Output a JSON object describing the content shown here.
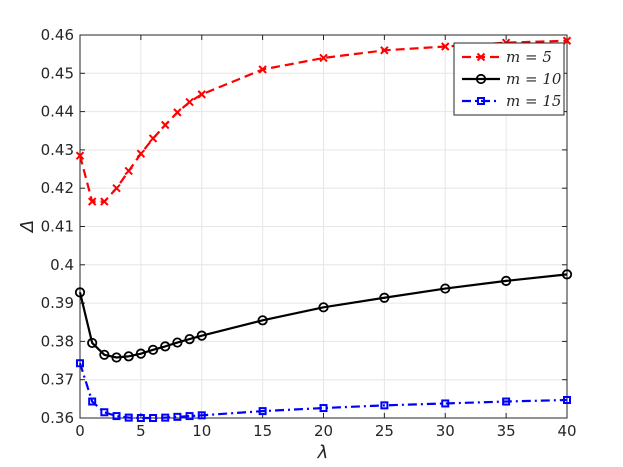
{
  "chart_data": {
    "type": "line",
    "xlabel": "λ",
    "ylabel": "Δ",
    "xlim": [
      0,
      40
    ],
    "ylim": [
      0.36,
      0.46
    ],
    "xticks": [
      0,
      5,
      10,
      15,
      20,
      25,
      30,
      35,
      40
    ],
    "yticks": [
      0.36,
      0.37,
      0.38,
      0.39,
      0.4,
      0.41,
      0.42,
      0.43,
      0.44,
      0.45,
      0.46
    ],
    "ytick_labels": [
      "0.36",
      "0.37",
      "0.38",
      "0.39",
      "0.4",
      "0.41",
      "0.42",
      "0.43",
      "0.44",
      "0.45",
      "0.46"
    ],
    "xtick_labels": [
      "0",
      "5",
      "10",
      "15",
      "20",
      "25",
      "30",
      "35",
      "40"
    ],
    "grid": true,
    "legend_position": "top-right",
    "x": [
      0,
      1,
      2,
      3,
      4,
      5,
      6,
      7,
      8,
      9,
      10,
      15,
      20,
      25,
      30,
      35,
      40
    ],
    "series": [
      {
        "name": "m = 5",
        "color": "#ff0000",
        "linestyle": "dashed",
        "marker": "x",
        "values": [
          0.4285,
          0.4165,
          0.4165,
          0.42,
          0.4245,
          0.429,
          0.433,
          0.4365,
          0.4398,
          0.4425,
          0.4445,
          0.451,
          0.454,
          0.456,
          0.457,
          0.458,
          0.4585
        ]
      },
      {
        "name": "m = 10",
        "color": "#000000",
        "linestyle": "solid",
        "marker": "circle",
        "values": [
          0.3928,
          0.3796,
          0.3765,
          0.3758,
          0.3761,
          0.3768,
          0.3778,
          0.3787,
          0.3797,
          0.3806,
          0.3815,
          0.3855,
          0.3889,
          0.3914,
          0.3938,
          0.3958,
          0.3975
        ]
      },
      {
        "name": "m = 15",
        "color": "#0000ff",
        "linestyle": "dashdot",
        "marker": "square",
        "values": [
          0.3743,
          0.3643,
          0.3615,
          0.3605,
          0.3601,
          0.36,
          0.36,
          0.3601,
          0.3603,
          0.3605,
          0.3607,
          0.3618,
          0.3626,
          0.3633,
          0.3638,
          0.3643,
          0.3647
        ]
      }
    ]
  }
}
